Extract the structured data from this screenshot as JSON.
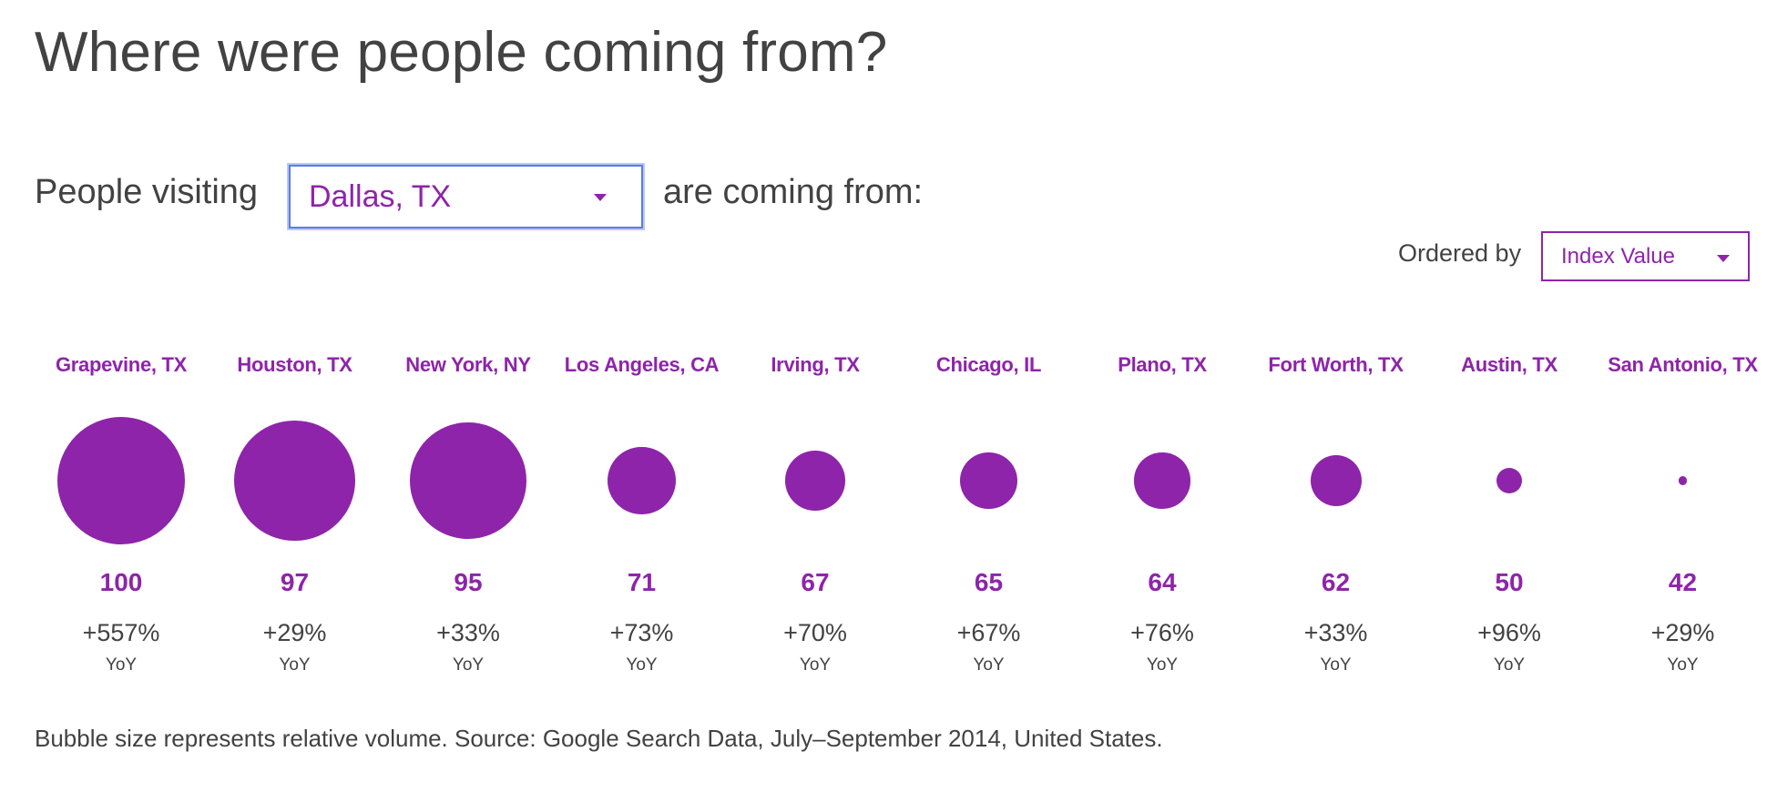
{
  "title": "Where were people coming from?",
  "controls": {
    "prefix": "People visiting",
    "destination_value": "Dallas, TX",
    "suffix": "are coming from:",
    "ordered_by_label": "Ordered by",
    "ordered_by_value": "Index Value"
  },
  "colors": {
    "accent": "#8e24aa",
    "text": "#424242",
    "focus_border": "#5b7be8"
  },
  "chart_data": {
    "type": "bubble",
    "categories": [
      "Grapevine, TX",
      "Houston, TX",
      "New York, NY",
      "Los Angeles, CA",
      "Irving, TX",
      "Chicago, IL",
      "Plano, TX",
      "Fort Worth, TX",
      "Austin, TX",
      "San Antonio, TX"
    ],
    "index_values": [
      100,
      97,
      95,
      71,
      67,
      65,
      64,
      62,
      50,
      42
    ],
    "relative_volume": [
      1.0,
      0.89,
      0.83,
      0.28,
      0.22,
      0.2,
      0.19,
      0.16,
      0.04,
      0.005
    ],
    "yoy_change": [
      "+557%",
      "+29%",
      "+33%",
      "+73%",
      "+70%",
      "+67%",
      "+76%",
      "+33%",
      "+96%",
      "+29%"
    ],
    "yoy_label": "YoY"
  },
  "footnote": "Bubble size represents relative volume. Source: Google Search Data, July–September 2014, United States."
}
